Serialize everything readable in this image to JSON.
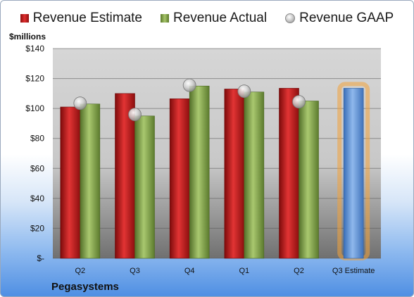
{
  "legend": {
    "estimate": "Revenue Estimate",
    "actual": "Revenue Actual",
    "gaap": "Revenue GAAP"
  },
  "unit_label": "$millions",
  "company": "Pegasystems",
  "colors": {
    "estimate": "#c81e1e",
    "actual": "#8fb04d",
    "gaap": "#b8b8b8",
    "highlight_bar": "#5b8fd6",
    "highlight_glow": "#f2a23a"
  },
  "chart_data": {
    "type": "bar",
    "categories": [
      "Q2",
      "Q3",
      "Q4",
      "Q1",
      "Q2",
      "Q3 Estimate"
    ],
    "series": [
      {
        "name": "Revenue Estimate",
        "values": [
          101,
          110,
          106.5,
          113,
          113.5,
          113.5
        ]
      },
      {
        "name": "Revenue Actual",
        "values": [
          103,
          95,
          115,
          111,
          105,
          null
        ]
      },
      {
        "name": "Revenue GAAP",
        "values": [
          103.5,
          96,
          115.5,
          111.5,
          104.5,
          null
        ]
      }
    ],
    "ytick_labels": [
      "$-",
      "$20",
      "$40",
      "$60",
      "$80",
      "$100",
      "$120",
      "$140"
    ],
    "ylim": [
      0,
      140
    ],
    "ylabel": "$millions",
    "grid": true,
    "legend_position": "top"
  }
}
